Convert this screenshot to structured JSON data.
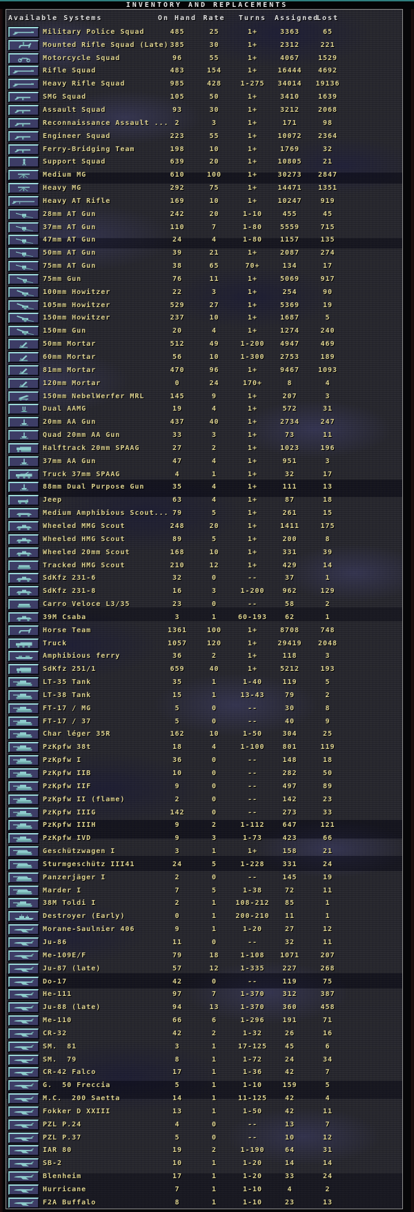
{
  "title": "INVENTORY AND REPLACEMENTS",
  "columns": {
    "systems": "Available Systems",
    "on_hand": "On Hand",
    "rate": "Rate",
    "turns": "Turns",
    "assigned": "Assigned",
    "lost": "Lost"
  },
  "colors": {
    "title_accent_line": "#2e7f7f",
    "panel_border": "#8d8d8d",
    "background_base": "#2b2b31",
    "header_text": "#e4e4e4",
    "row_text": "#dfd491",
    "icon_box_fill": "#3d3d66",
    "icon_box_highlight": "#9bd8d8",
    "icon_glyph": "#8ecccc"
  },
  "rows": [
    {
      "icon": "rifle-icon",
      "name": "Military Police Squad",
      "on_hand": "485",
      "rate": "25",
      "turns": "1+",
      "assigned": "3363",
      "lost": "65"
    },
    {
      "icon": "horse-rider-icon",
      "name": "Mounted Rifle Squad (Late)",
      "on_hand": "385",
      "rate": "30",
      "turns": "1+",
      "assigned": "2312",
      "lost": "221"
    },
    {
      "icon": "motorcycle-icon",
      "name": "Motorcycle Squad",
      "on_hand": "96",
      "rate": "55",
      "turns": "1+",
      "assigned": "4067",
      "lost": "1529"
    },
    {
      "icon": "rifle-icon",
      "name": "Rifle Squad",
      "on_hand": "483",
      "rate": "154",
      "turns": "1+",
      "assigned": "16444",
      "lost": "4692"
    },
    {
      "icon": "rifle-icon",
      "name": "Heavy Rifle Squad",
      "on_hand": "985",
      "rate": "428",
      "turns": "1-275",
      "assigned": "34014",
      "lost": "19136"
    },
    {
      "icon": "smg-icon",
      "name": "SMG Squad",
      "on_hand": "105",
      "rate": "50",
      "turns": "1+",
      "assigned": "3410",
      "lost": "1639"
    },
    {
      "icon": "smg-icon",
      "name": "Assault Squad",
      "on_hand": "93",
      "rate": "30",
      "turns": "1+",
      "assigned": "3212",
      "lost": "2068"
    },
    {
      "icon": "smg-icon",
      "name": "Reconnaissance Assault ...",
      "on_hand": "2",
      "rate": "3",
      "turns": "1+",
      "assigned": "171",
      "lost": "98"
    },
    {
      "icon": "smg-icon",
      "name": "Engineer Squad",
      "on_hand": "223",
      "rate": "55",
      "turns": "1+",
      "assigned": "10072",
      "lost": "2364"
    },
    {
      "icon": "smg-icon",
      "name": "Ferry-Bridging Team",
      "on_hand": "198",
      "rate": "10",
      "turns": "1+",
      "assigned": "1769",
      "lost": "32"
    },
    {
      "icon": "soldier-icon",
      "name": "Support Squad",
      "on_hand": "639",
      "rate": "20",
      "turns": "1+",
      "assigned": "10805",
      "lost": "21"
    },
    {
      "icon": "mg-icon",
      "name": "Medium MG",
      "on_hand": "610",
      "rate": "100",
      "turns": "1+",
      "assigned": "30273",
      "lost": "2847"
    },
    {
      "icon": "mg-icon",
      "name": "Heavy MG",
      "on_hand": "292",
      "rate": "75",
      "turns": "1+",
      "assigned": "14471",
      "lost": "1351"
    },
    {
      "icon": "longrifle-icon",
      "name": "Heavy AT Rifle",
      "on_hand": "169",
      "rate": "10",
      "turns": "1+",
      "assigned": "10247",
      "lost": "919"
    },
    {
      "icon": "at-gun-icon",
      "name": "28mm AT Gun",
      "on_hand": "242",
      "rate": "20",
      "turns": "1-10",
      "assigned": "455",
      "lost": "45"
    },
    {
      "icon": "at-gun-icon",
      "name": "37mm AT Gun",
      "on_hand": "110",
      "rate": "7",
      "turns": "1-80",
      "assigned": "5559",
      "lost": "715"
    },
    {
      "icon": "at-gun-icon",
      "name": "47mm AT Gun",
      "on_hand": "24",
      "rate": "4",
      "turns": "1-80",
      "assigned": "1157",
      "lost": "135"
    },
    {
      "icon": "at-gun-icon",
      "name": "50mm AT Gun",
      "on_hand": "39",
      "rate": "21",
      "turns": "1+",
      "assigned": "2087",
      "lost": "274"
    },
    {
      "icon": "at-gun-icon",
      "name": "75mm AT Gun",
      "on_hand": "38",
      "rate": "65",
      "turns": "70+",
      "assigned": "134",
      "lost": "17"
    },
    {
      "icon": "fieldgun-icon",
      "name": "75mm Gun",
      "on_hand": "76",
      "rate": "11",
      "turns": "1+",
      "assigned": "5069",
      "lost": "917"
    },
    {
      "icon": "howitzer-icon",
      "name": "100mm Howitzer",
      "on_hand": "22",
      "rate": "3",
      "turns": "1+",
      "assigned": "254",
      "lost": "90"
    },
    {
      "icon": "howitzer-icon",
      "name": "105mm Howitzer",
      "on_hand": "529",
      "rate": "27",
      "turns": "1+",
      "assigned": "5369",
      "lost": "19"
    },
    {
      "icon": "howitzer-icon",
      "name": "150mm Howitzer",
      "on_hand": "237",
      "rate": "10",
      "turns": "1+",
      "assigned": "1687",
      "lost": "5"
    },
    {
      "icon": "howitzer-icon",
      "name": "150mm Gun",
      "on_hand": "20",
      "rate": "4",
      "turns": "1+",
      "assigned": "1274",
      "lost": "240"
    },
    {
      "icon": "mortar-icon",
      "name": "50mm Mortar",
      "on_hand": "512",
      "rate": "49",
      "turns": "1-200",
      "assigned": "4947",
      "lost": "469"
    },
    {
      "icon": "mortar-icon",
      "name": "60mm Mortar",
      "on_hand": "56",
      "rate": "10",
      "turns": "1-300",
      "assigned": "2753",
      "lost": "189"
    },
    {
      "icon": "mortar-icon",
      "name": "81mm Mortar",
      "on_hand": "470",
      "rate": "96",
      "turns": "1+",
      "assigned": "9467",
      "lost": "1093"
    },
    {
      "icon": "mortar-icon",
      "name": "120mm Mortar",
      "on_hand": "0",
      "rate": "24",
      "turns": "170+",
      "assigned": "8",
      "lost": "4"
    },
    {
      "icon": "mrl-icon",
      "name": "150mm NebelWerfer MRL",
      "on_hand": "145",
      "rate": "9",
      "turns": "1+",
      "assigned": "207",
      "lost": "3"
    },
    {
      "icon": "aamg-icon",
      "name": "Dual AAMG",
      "on_hand": "19",
      "rate": "4",
      "turns": "1+",
      "assigned": "572",
      "lost": "31"
    },
    {
      "icon": "aa-gun-icon",
      "name": "20mm AA Gun",
      "on_hand": "437",
      "rate": "40",
      "turns": "1+",
      "assigned": "2734",
      "lost": "247"
    },
    {
      "icon": "aa-gun-icon",
      "name": "Quad 20mm AA Gun",
      "on_hand": "33",
      "rate": "3",
      "turns": "1+",
      "assigned": "73",
      "lost": "11"
    },
    {
      "icon": "halftrack-icon",
      "name": "Halftrack 20mm SPAAG",
      "on_hand": "27",
      "rate": "2",
      "turns": "1+",
      "assigned": "1023",
      "lost": "196"
    },
    {
      "icon": "aa-gun-icon",
      "name": "37mm AA Gun",
      "on_hand": "47",
      "rate": "4",
      "turns": "1+",
      "assigned": "951",
      "lost": "3"
    },
    {
      "icon": "truck-aa-icon",
      "name": "Truck 37mm SPAAG",
      "on_hand": "4",
      "rate": "1",
      "turns": "1+",
      "assigned": "32",
      "lost": "17"
    },
    {
      "icon": "aa-gun-icon",
      "name": "88mm Dual Purpose Gun",
      "on_hand": "35",
      "rate": "4",
      "turns": "1+",
      "assigned": "111",
      "lost": "13"
    },
    {
      "icon": "jeep-icon",
      "name": "Jeep",
      "on_hand": "63",
      "rate": "4",
      "turns": "1+",
      "assigned": "87",
      "lost": "18"
    },
    {
      "icon": "car-icon",
      "name": "Medium Amphibious Scout...",
      "on_hand": "79",
      "rate": "5",
      "turns": "1+",
      "assigned": "261",
      "lost": "15"
    },
    {
      "icon": "armored-car-icon",
      "name": "Wheeled MMG Scout",
      "on_hand": "248",
      "rate": "20",
      "turns": "1+",
      "assigned": "1411",
      "lost": "175"
    },
    {
      "icon": "armored-car-icon",
      "name": "Wheeled HMG Scout",
      "on_hand": "89",
      "rate": "5",
      "turns": "1+",
      "assigned": "200",
      "lost": "8"
    },
    {
      "icon": "armored-car-icon",
      "name": "Wheeled 20mm Scout",
      "on_hand": "168",
      "rate": "10",
      "turns": "1+",
      "assigned": "331",
      "lost": "39"
    },
    {
      "icon": "tankette-icon",
      "name": "Tracked HMG Scout",
      "on_hand": "210",
      "rate": "12",
      "turns": "1+",
      "assigned": "429",
      "lost": "14"
    },
    {
      "icon": "armored-car-icon",
      "name": "SdKfz 231-6",
      "on_hand": "32",
      "rate": "0",
      "turns": "--",
      "assigned": "37",
      "lost": "1"
    },
    {
      "icon": "armored-car-icon",
      "name": "SdKfz 231-8",
      "on_hand": "16",
      "rate": "3",
      "turns": "1-200",
      "assigned": "962",
      "lost": "129"
    },
    {
      "icon": "tankette-icon",
      "name": "Carro Veloce L3/35",
      "on_hand": "23",
      "rate": "0",
      "turns": "--",
      "assigned": "58",
      "lost": "2"
    },
    {
      "icon": "armored-car-icon",
      "name": "39M Csaba",
      "on_hand": "3",
      "rate": "1",
      "turns": "60-193",
      "assigned": "62",
      "lost": "1"
    },
    {
      "icon": "horse-icon",
      "name": "Horse Team",
      "on_hand": "1361",
      "rate": "100",
      "turns": "1+",
      "assigned": "8708",
      "lost": "748"
    },
    {
      "icon": "truck-icon",
      "name": "Truck",
      "on_hand": "1057",
      "rate": "120",
      "turns": "1+",
      "assigned": "29419",
      "lost": "2048"
    },
    {
      "icon": "ferry-icon",
      "name": "Amphibious ferry",
      "on_hand": "36",
      "rate": "2",
      "turns": "1+",
      "assigned": "118",
      "lost": "3"
    },
    {
      "icon": "halftrack-icon",
      "name": "SdKfz 251/1",
      "on_hand": "659",
      "rate": "40",
      "turns": "1+",
      "assigned": "5212",
      "lost": "193"
    },
    {
      "icon": "tank-icon",
      "name": "LT-35 Tank",
      "on_hand": "35",
      "rate": "1",
      "turns": "1-40",
      "assigned": "119",
      "lost": "5"
    },
    {
      "icon": "tank-icon",
      "name": "LT-38 Tank",
      "on_hand": "15",
      "rate": "1",
      "turns": "13-43",
      "assigned": "79",
      "lost": "2"
    },
    {
      "icon": "tank-icon",
      "name": "FT-17 / MG",
      "on_hand": "5",
      "rate": "0",
      "turns": "--",
      "assigned": "30",
      "lost": "8"
    },
    {
      "icon": "tank-icon",
      "name": "FT-17 / 37",
      "on_hand": "5",
      "rate": "0",
      "turns": "--",
      "assigned": "40",
      "lost": "9"
    },
    {
      "icon": "tank-icon",
      "name": "Char léger 35R",
      "on_hand": "162",
      "rate": "10",
      "turns": "1-50",
      "assigned": "304",
      "lost": "25"
    },
    {
      "icon": "tank-icon",
      "name": "PzKpfw 38t",
      "on_hand": "18",
      "rate": "4",
      "turns": "1-100",
      "assigned": "801",
      "lost": "119"
    },
    {
      "icon": "tank-icon",
      "name": "PzKpfw I",
      "on_hand": "36",
      "rate": "0",
      "turns": "--",
      "assigned": "148",
      "lost": "18"
    },
    {
      "icon": "tank-icon",
      "name": "PzKpfw IIB",
      "on_hand": "10",
      "rate": "0",
      "turns": "--",
      "assigned": "282",
      "lost": "50"
    },
    {
      "icon": "tank-icon",
      "name": "PzKpfw IIF",
      "on_hand": "9",
      "rate": "0",
      "turns": "--",
      "assigned": "497",
      "lost": "89"
    },
    {
      "icon": "tank-icon",
      "name": "PzKpfw II (flame)",
      "on_hand": "2",
      "rate": "0",
      "turns": "--",
      "assigned": "142",
      "lost": "23"
    },
    {
      "icon": "tank-icon",
      "name": "PzKpfw IIIG",
      "on_hand": "142",
      "rate": "0",
      "turns": "--",
      "assigned": "273",
      "lost": "33"
    },
    {
      "icon": "tank-icon",
      "name": "PzKpfw IIIH",
      "on_hand": "9",
      "rate": "2",
      "turns": "1-112",
      "assigned": "647",
      "lost": "121"
    },
    {
      "icon": "tank-icon",
      "name": "PzKpfw IVD",
      "on_hand": "9",
      "rate": "3",
      "turns": "1-73",
      "assigned": "423",
      "lost": "66"
    },
    {
      "icon": "spg-icon",
      "name": "Geschützwagen I",
      "on_hand": "3",
      "rate": "1",
      "turns": "1+",
      "assigned": "158",
      "lost": "21"
    },
    {
      "icon": "spg-icon",
      "name": "Sturmgeschütz III41",
      "on_hand": "24",
      "rate": "5",
      "turns": "1-228",
      "assigned": "331",
      "lost": "24"
    },
    {
      "icon": "spg-icon",
      "name": "Panzerjäger I",
      "on_hand": "2",
      "rate": "0",
      "turns": "--",
      "assigned": "145",
      "lost": "19"
    },
    {
      "icon": "spg-icon",
      "name": "Marder I",
      "on_hand": "7",
      "rate": "5",
      "turns": "1-38",
      "assigned": "72",
      "lost": "11"
    },
    {
      "icon": "tank-icon",
      "name": "38M Toldi I",
      "on_hand": "2",
      "rate": "1",
      "turns": "108-212",
      "assigned": "85",
      "lost": "1"
    },
    {
      "icon": "ship-icon",
      "name": "Destroyer (Early)",
      "on_hand": "0",
      "rate": "1",
      "turns": "200-210",
      "assigned": "11",
      "lost": "1"
    },
    {
      "icon": "plane-icon",
      "name": "Morane-Saulnier 406",
      "on_hand": "9",
      "rate": "1",
      "turns": "1-20",
      "assigned": "27",
      "lost": "12"
    },
    {
      "icon": "plane-icon",
      "name": "Ju-86",
      "on_hand": "11",
      "rate": "0",
      "turns": "--",
      "assigned": "32",
      "lost": "11"
    },
    {
      "icon": "plane-icon",
      "name": "Me-109E/F",
      "on_hand": "79",
      "rate": "18",
      "turns": "1-108",
      "assigned": "1071",
      "lost": "207"
    },
    {
      "icon": "plane-icon",
      "name": "Ju-87 (late)",
      "on_hand": "57",
      "rate": "12",
      "turns": "1-335",
      "assigned": "227",
      "lost": "268"
    },
    {
      "icon": "plane-icon",
      "name": "Do-17",
      "on_hand": "42",
      "rate": "0",
      "turns": "--",
      "assigned": "119",
      "lost": "75"
    },
    {
      "icon": "plane-icon",
      "name": "He-111",
      "on_hand": "97",
      "rate": "7",
      "turns": "1-370",
      "assigned": "312",
      "lost": "387"
    },
    {
      "icon": "plane-icon",
      "name": "Ju-88 (late)",
      "on_hand": "94",
      "rate": "13",
      "turns": "1-370",
      "assigned": "360",
      "lost": "458"
    },
    {
      "icon": "plane-icon",
      "name": "Me-110",
      "on_hand": "66",
      "rate": "6",
      "turns": "1-296",
      "assigned": "191",
      "lost": "71"
    },
    {
      "icon": "plane-icon",
      "name": "CR-32",
      "on_hand": "42",
      "rate": "2",
      "turns": "1-32",
      "assigned": "26",
      "lost": "16"
    },
    {
      "icon": "plane-icon",
      "name": "SM.  81",
      "on_hand": "3",
      "rate": "1",
      "turns": "17-125",
      "assigned": "45",
      "lost": "6"
    },
    {
      "icon": "plane-icon",
      "name": "SM.  79",
      "on_hand": "8",
      "rate": "1",
      "turns": "1-72",
      "assigned": "24",
      "lost": "34"
    },
    {
      "icon": "plane-icon",
      "name": "CR-42 Falco",
      "on_hand": "17",
      "rate": "1",
      "turns": "1-36",
      "assigned": "42",
      "lost": "7"
    },
    {
      "icon": "plane-icon",
      "name": "G.  50 Freccia",
      "on_hand": "5",
      "rate": "1",
      "turns": "1-10",
      "assigned": "159",
      "lost": "5"
    },
    {
      "icon": "plane-icon",
      "name": "M.C.  200 Saetta",
      "on_hand": "14",
      "rate": "1",
      "turns": "11-125",
      "assigned": "42",
      "lost": "4"
    },
    {
      "icon": "plane-icon",
      "name": "Fokker D XXIII",
      "on_hand": "13",
      "rate": "1",
      "turns": "1-50",
      "assigned": "42",
      "lost": "11"
    },
    {
      "icon": "plane-icon",
      "name": "PZL P.24",
      "on_hand": "4",
      "rate": "0",
      "turns": "--",
      "assigned": "13",
      "lost": "7"
    },
    {
      "icon": "plane-icon",
      "name": "PZL P.37",
      "on_hand": "5",
      "rate": "0",
      "turns": "--",
      "assigned": "10",
      "lost": "12"
    },
    {
      "icon": "plane-icon",
      "name": "IAR 80",
      "on_hand": "19",
      "rate": "2",
      "turns": "1-190",
      "assigned": "64",
      "lost": "31"
    },
    {
      "icon": "plane-icon",
      "name": "SB-2",
      "on_hand": "10",
      "rate": "1",
      "turns": "1-20",
      "assigned": "14",
      "lost": "14"
    },
    {
      "icon": "plane-icon",
      "name": "Blenheim",
      "on_hand": "17",
      "rate": "1",
      "turns": "1-20",
      "assigned": "33",
      "lost": "24"
    },
    {
      "icon": "plane-icon",
      "name": "Hurricane",
      "on_hand": "7",
      "rate": "1",
      "turns": "1-10",
      "assigned": "4",
      "lost": "2"
    },
    {
      "icon": "plane-icon",
      "name": "F2A Buffalo",
      "on_hand": "8",
      "rate": "1",
      "turns": "1-10",
      "assigned": "23",
      "lost": "13"
    }
  ]
}
